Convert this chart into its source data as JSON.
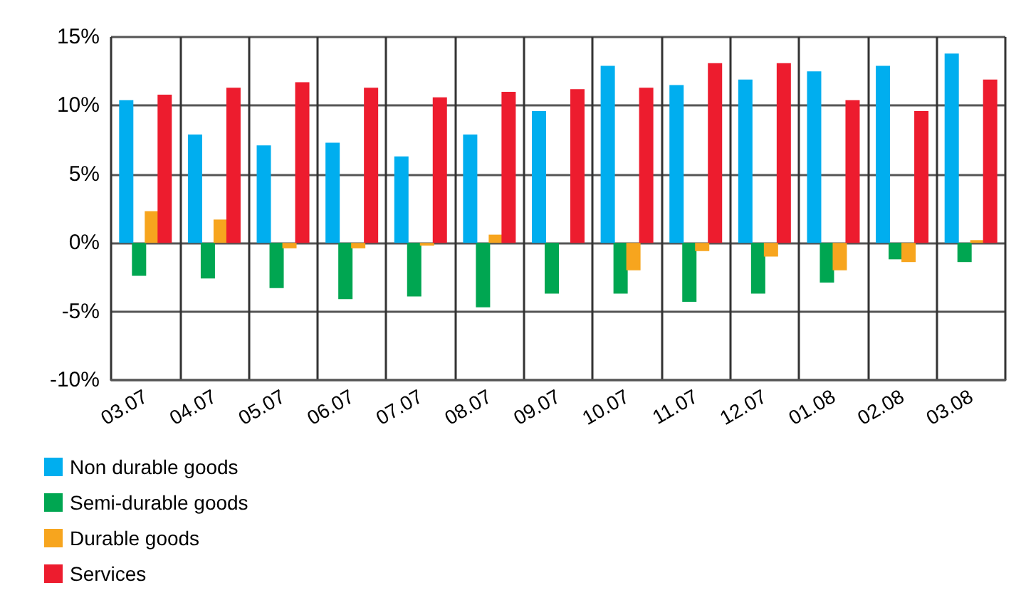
{
  "chart_data": {
    "type": "bar",
    "categories": [
      "03.07",
      "04.07",
      "05.07",
      "06.07",
      "07.07",
      "08.07",
      "09.07",
      "10.07",
      "11.07",
      "12.07",
      "01.08",
      "02.08",
      "03.08"
    ],
    "series": [
      {
        "name": "Non durable goods",
        "color": "#00aeef",
        "values": [
          10.4,
          7.9,
          7.1,
          7.3,
          6.3,
          7.9,
          9.6,
          12.9,
          11.5,
          11.9,
          12.5,
          12.9,
          13.8
        ]
      },
      {
        "name": "Semi-durable goods",
        "color": "#00a651",
        "values": [
          -2.4,
          -2.6,
          -3.3,
          -4.1,
          -3.9,
          -4.7,
          -3.7,
          -3.7,
          -4.3,
          -3.7,
          -2.9,
          -1.2,
          -1.4
        ]
      },
      {
        "name": "Durable goods",
        "color": "#f7a51e",
        "values": [
          2.3,
          1.7,
          -0.4,
          -0.4,
          -0.2,
          0.6,
          0,
          -2.0,
          -0.6,
          -1.0,
          -2.0,
          -1.4,
          0.2
        ]
      },
      {
        "name": "Services",
        "color": "#ed1c2e",
        "values": [
          10.8,
          11.3,
          11.7,
          11.3,
          10.6,
          11.0,
          11.2,
          11.3,
          13.1,
          13.1,
          10.4,
          9.6,
          11.9
        ]
      }
    ],
    "ylim": [
      -10,
      15
    ],
    "yticks": [
      {
        "value": -10,
        "label": "-10%"
      },
      {
        "value": -5,
        "label": "-5%"
      },
      {
        "value": 0,
        "label": "0%"
      },
      {
        "value": 5,
        "label": "5%"
      },
      {
        "value": 10,
        "label": "10%"
      },
      {
        "value": 15,
        "label": "15%"
      }
    ],
    "grid": true,
    "legend": "bottom left"
  }
}
